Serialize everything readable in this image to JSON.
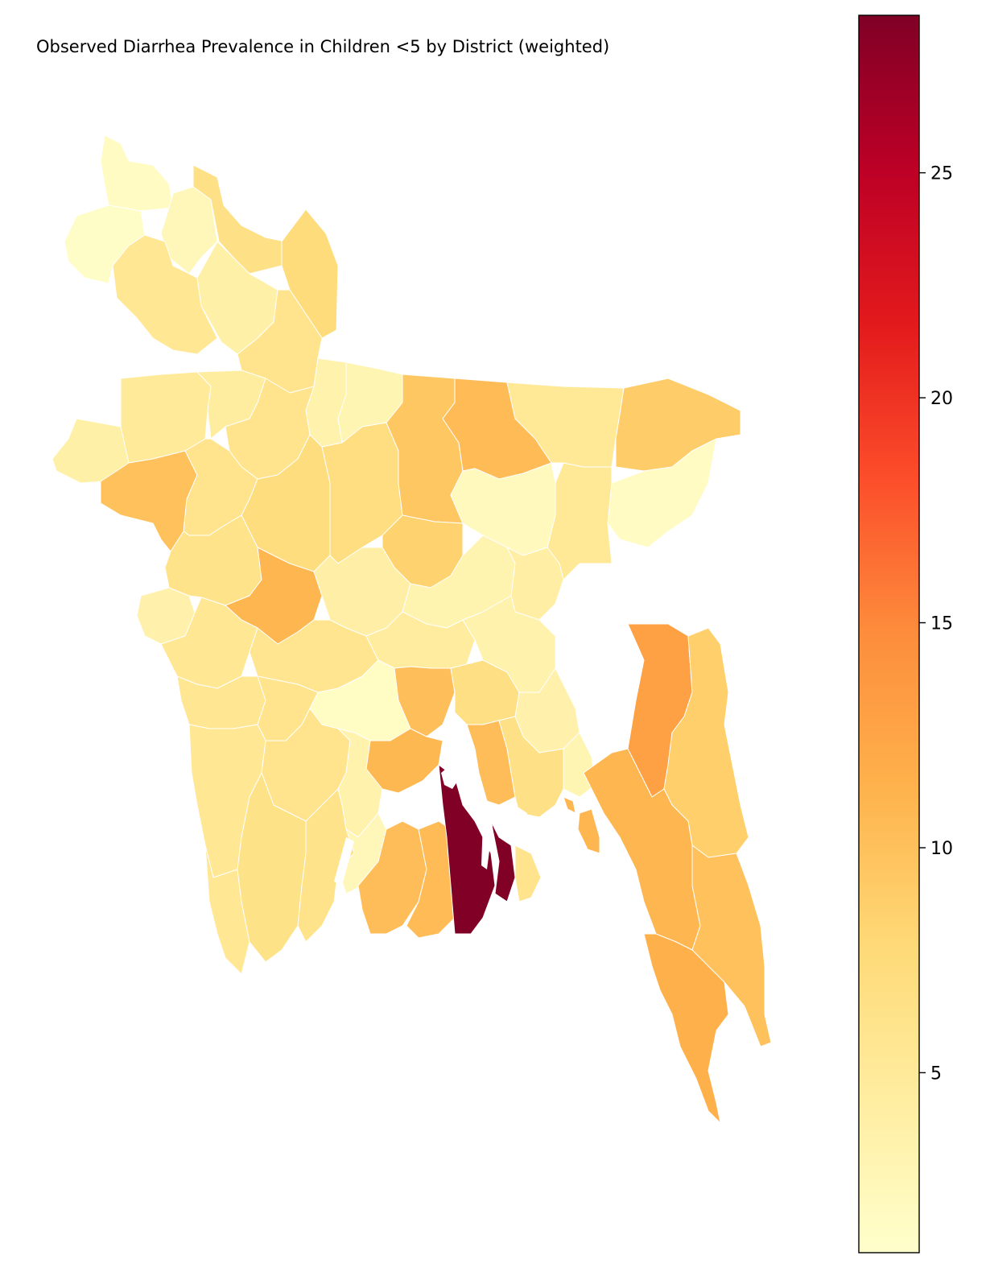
{
  "title": "Observed Diarrhea Prevalence in Children <5 by District (weighted)",
  "colorbar": {
    "colormap": "YlOrRd",
    "vmin": 1,
    "vmax": 28.5,
    "ticks": [
      5,
      10,
      15,
      20,
      25
    ],
    "tick_labels": [
      "5",
      "10",
      "15",
      "20",
      "25"
    ]
  },
  "colors": {
    "border": "#ffffff",
    "outline": "#000000",
    "highest": "#800026",
    "lowest": "#ffffcc"
  },
  "map_data": {
    "type": "choropleth",
    "region": "Bangladesh districts",
    "value_units": "percent",
    "max_value": 28.5,
    "min_value": 1
  }
}
